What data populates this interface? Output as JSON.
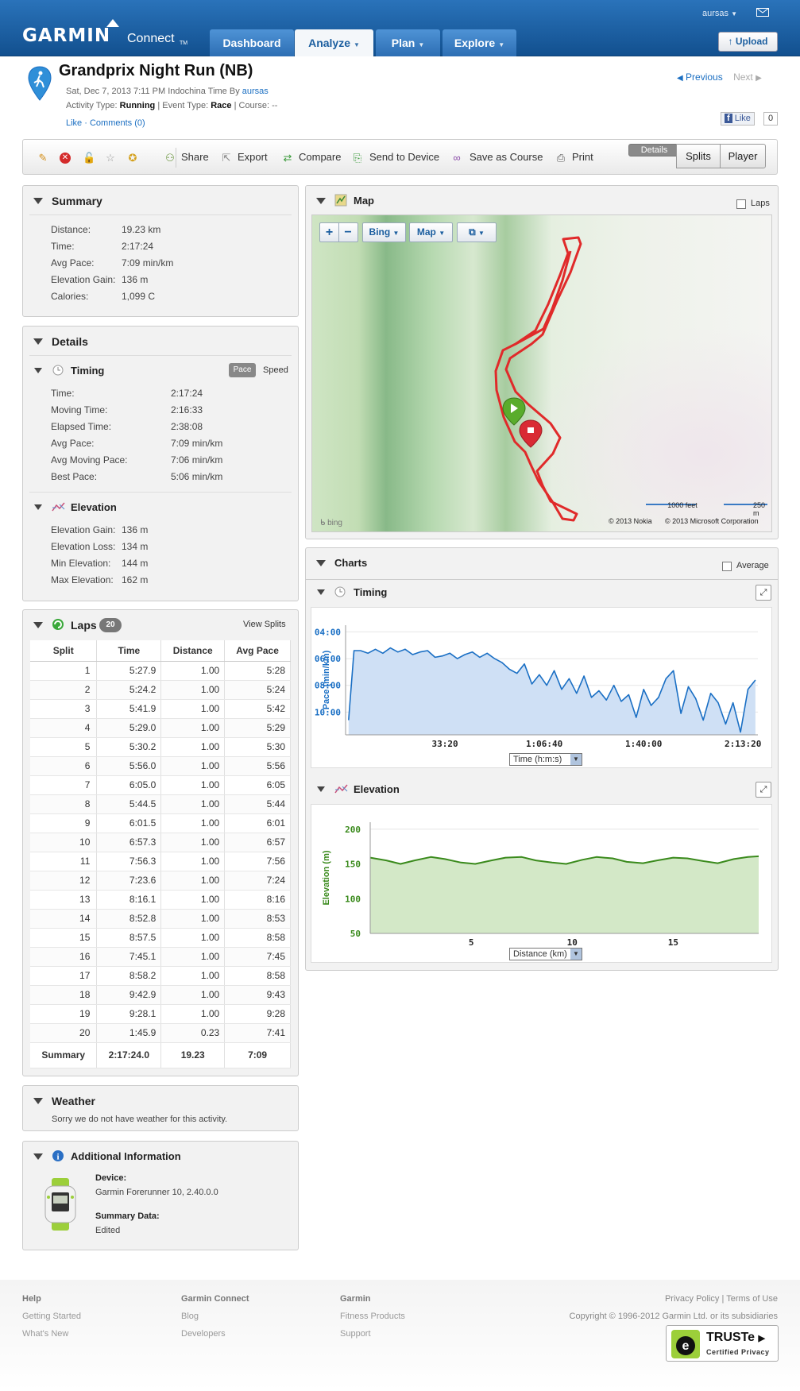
{
  "header": {
    "logo_text": "GARMIN",
    "logo_connect": "Connect",
    "logo_tm": "TM",
    "tabs": [
      {
        "label": "Dashboard",
        "has_menu": false
      },
      {
        "label": "Analyze",
        "has_menu": true
      },
      {
        "label": "Plan",
        "has_menu": true
      },
      {
        "label": "Explore",
        "has_menu": true
      }
    ],
    "active_tab": "Analyze",
    "username": "aursas",
    "upload_label": "Upload"
  },
  "activity": {
    "title": "Grandprix Night Run (NB)",
    "date_prefix": "Sat, Dec 7, 2013 7:11 PM Indochina Time By",
    "owner": "aursas",
    "type_label": "Activity Type:",
    "type_value": "Running",
    "event_label": "Event Type:",
    "event_value": "Race",
    "course_label": "Course:",
    "course_value": "--",
    "like_link": "Like",
    "comments_link": "Comments (0)",
    "previous_label": "Previous",
    "next_label": "Next",
    "fb_like": "Like",
    "fb_count": "0"
  },
  "toolbar": {
    "icons": [
      "pencil-icon",
      "delete-icon",
      "lock-icon",
      "star-icon",
      "medal-icon"
    ],
    "actions": [
      {
        "label": "Share",
        "icon": "share-icon"
      },
      {
        "label": "Export",
        "icon": "export-icon"
      },
      {
        "label": "Compare",
        "icon": "compare-icon"
      },
      {
        "label": "Send to Device",
        "icon": "send-to-device-icon"
      },
      {
        "label": "Save as Course",
        "icon": "save-course-icon"
      },
      {
        "label": "Print",
        "icon": "print-icon"
      }
    ],
    "views": [
      "Details",
      "Splits",
      "Player"
    ],
    "selected_view": "Details"
  },
  "summary": {
    "title": "Summary",
    "rows": [
      {
        "label": "Distance:",
        "value": "19.23 km"
      },
      {
        "label": "Time:",
        "value": "2:17:24"
      },
      {
        "label": "Avg Pace:",
        "value": "7:09 min/km"
      },
      {
        "label": "Elevation Gain:",
        "value": "136 m"
      },
      {
        "label": "Calories:",
        "value": "1,099 C"
      }
    ]
  },
  "details": {
    "title": "Details",
    "timing": {
      "title": "Timing",
      "toggle": [
        "Pace",
        "Speed"
      ],
      "selected": "Pace",
      "rows": [
        {
          "label": "Time:",
          "value": "2:17:24"
        },
        {
          "label": "Moving Time:",
          "value": "2:16:33"
        },
        {
          "label": "Elapsed Time:",
          "value": "2:38:08"
        },
        {
          "label": "Avg Pace:",
          "value": "7:09 min/km"
        },
        {
          "label": "Avg Moving Pace:",
          "value": "7:06 min/km"
        },
        {
          "label": "Best Pace:",
          "value": "5:06 min/km"
        }
      ]
    },
    "elevation": {
      "title": "Elevation",
      "rows": [
        {
          "label": "Elevation Gain:",
          "value": "136 m"
        },
        {
          "label": "Elevation Loss:",
          "value": "134 m"
        },
        {
          "label": "Min Elevation:",
          "value": "144 m"
        },
        {
          "label": "Max Elevation:",
          "value": "162 m"
        }
      ]
    }
  },
  "laps": {
    "title": "Laps",
    "count": "20",
    "view_splits": "View Splits",
    "headers": [
      "Split",
      "Time",
      "Distance",
      "Avg Pace"
    ],
    "rows": [
      [
        "1",
        "5:27.9",
        "1.00",
        "5:28"
      ],
      [
        "2",
        "5:24.2",
        "1.00",
        "5:24"
      ],
      [
        "3",
        "5:41.9",
        "1.00",
        "5:42"
      ],
      [
        "4",
        "5:29.0",
        "1.00",
        "5:29"
      ],
      [
        "5",
        "5:30.2",
        "1.00",
        "5:30"
      ],
      [
        "6",
        "5:56.0",
        "1.00",
        "5:56"
      ],
      [
        "7",
        "6:05.0",
        "1.00",
        "6:05"
      ],
      [
        "8",
        "5:44.5",
        "1.00",
        "5:44"
      ],
      [
        "9",
        "6:01.5",
        "1.00",
        "6:01"
      ],
      [
        "10",
        "6:57.3",
        "1.00",
        "6:57"
      ],
      [
        "11",
        "7:56.3",
        "1.00",
        "7:56"
      ],
      [
        "12",
        "7:23.6",
        "1.00",
        "7:24"
      ],
      [
        "13",
        "8:16.1",
        "1.00",
        "8:16"
      ],
      [
        "14",
        "8:52.8",
        "1.00",
        "8:53"
      ],
      [
        "15",
        "8:57.5",
        "1.00",
        "8:58"
      ],
      [
        "16",
        "7:45.1",
        "1.00",
        "7:45"
      ],
      [
        "17",
        "8:58.2",
        "1.00",
        "8:58"
      ],
      [
        "18",
        "9:42.9",
        "1.00",
        "9:43"
      ],
      [
        "19",
        "9:28.1",
        "1.00",
        "9:28"
      ],
      [
        "20",
        "1:45.9",
        "0.23",
        "7:41"
      ]
    ],
    "summary_row": [
      "Summary",
      "2:17:24.0",
      "19.23",
      "7:09"
    ]
  },
  "weather": {
    "title": "Weather",
    "message": "Sorry we do not have weather for this activity."
  },
  "additional": {
    "title": "Additional Information",
    "device_label": "Device:",
    "device_value": "Garmin Forerunner 10, 2.40.0.0",
    "summary_label": "Summary Data:",
    "summary_value": "Edited"
  },
  "map": {
    "title": "Map",
    "laps_label": "Laps",
    "zoom_in": "+",
    "zoom_out": "−",
    "provider": "Bing",
    "map_type": "Map",
    "scale_feet": "1000 feet",
    "scale_m": "250 m",
    "credit_nokia": "© 2013 Nokia",
    "credit_ms": "© 2013 Microsoft Corporation",
    "bing_logo": "bing"
  },
  "charts": {
    "title": "Charts",
    "average_label": "Average",
    "timing_title": "Timing",
    "elevation_title": "Elevation",
    "timing_select": "Time (h:m:s)",
    "elevation_select": "Distance (km)"
  },
  "chart_data": [
    {
      "type": "area",
      "title": "Timing",
      "ylabel": "Pace (min/km)",
      "xlabel": "Time (h:m:s)",
      "y_ticks": [
        "04:00",
        "06:00",
        "08:00",
        "10:00"
      ],
      "x_ticks": [
        "33:20",
        "1:06:40",
        "1:40:00",
        "2:13:20"
      ],
      "y_reversed": true,
      "xlim_seconds": [
        0,
        8300
      ],
      "ylim_minutes": [
        3.5,
        11.7
      ],
      "x_seconds": [
        60,
        170,
        300,
        450,
        600,
        750,
        900,
        1050,
        1200,
        1350,
        1500,
        1650,
        1800,
        1950,
        2100,
        2250,
        2400,
        2550,
        2700,
        2850,
        3000,
        3150,
        3300,
        3450,
        3600,
        3750,
        3900,
        4050,
        4200,
        4350,
        4500,
        4650,
        4800,
        4950,
        5100,
        5250,
        5400,
        5550,
        5700,
        5850,
        6000,
        6150,
        6300,
        6450,
        6600,
        6750,
        6900,
        7050,
        7200,
        7350,
        7500,
        7650,
        7800,
        7950,
        8100,
        8250
      ],
      "pace_minutes": [
        10.6,
        5.4,
        5.4,
        5.6,
        5.3,
        5.6,
        5.2,
        5.5,
        5.3,
        5.7,
        5.5,
        5.4,
        5.9,
        5.8,
        5.6,
        6.0,
        5.7,
        5.5,
        5.9,
        5.6,
        6.0,
        6.3,
        6.8,
        7.1,
        6.4,
        7.9,
        7.2,
        8.0,
        6.9,
        8.3,
        7.5,
        8.6,
        7.3,
        8.9,
        8.4,
        9.1,
        8.0,
        9.2,
        8.7,
        10.4,
        8.3,
        9.5,
        8.9,
        7.5,
        6.9,
        10.1,
        8.1,
        9.0,
        10.6,
        8.6,
        9.3,
        10.9,
        9.3,
        11.5,
        8.3,
        7.6
      ],
      "color": "#1a6fc4",
      "fill": "#cfe0f5"
    },
    {
      "type": "area",
      "title": "Elevation",
      "ylabel": "Elevation (m)",
      "xlabel": "Distance (km)",
      "y_ticks": [
        50,
        100,
        150,
        200
      ],
      "x_ticks": [
        5,
        10,
        15
      ],
      "xlim": [
        0,
        19.23
      ],
      "ylim": [
        50,
        210
      ],
      "x_km": [
        0,
        0.8,
        1.5,
        2.2,
        3.0,
        3.7,
        4.5,
        5.2,
        6.0,
        6.7,
        7.5,
        8.2,
        9.0,
        9.7,
        10.5,
        11.2,
        12.0,
        12.7,
        13.5,
        14.2,
        15.0,
        15.7,
        16.5,
        17.2,
        18.0,
        18.7,
        19.23
      ],
      "elevation_m": [
        159,
        155,
        150,
        155,
        160,
        157,
        152,
        150,
        155,
        159,
        160,
        155,
        152,
        150,
        156,
        160,
        158,
        153,
        151,
        155,
        159,
        158,
        154,
        151,
        157,
        160,
        161
      ],
      "color": "#3a8a1c",
      "fill": "#d3e8c7"
    }
  ],
  "footer": {
    "cols": [
      {
        "heading": "Help",
        "items": [
          "Getting Started",
          "What's New"
        ]
      },
      {
        "heading": "Garmin Connect",
        "items": [
          "Blog",
          "Developers"
        ]
      },
      {
        "heading": "Garmin",
        "items": [
          "Fitness Products",
          "Support"
        ]
      }
    ],
    "privacy": "Privacy Policy",
    "terms": "Terms of Use",
    "copyright": "Copyright © 1996-2012 Garmin Ltd. or its subsidiaries",
    "truste": "TRUSTe",
    "truste_sub": "Certified Privacy"
  }
}
